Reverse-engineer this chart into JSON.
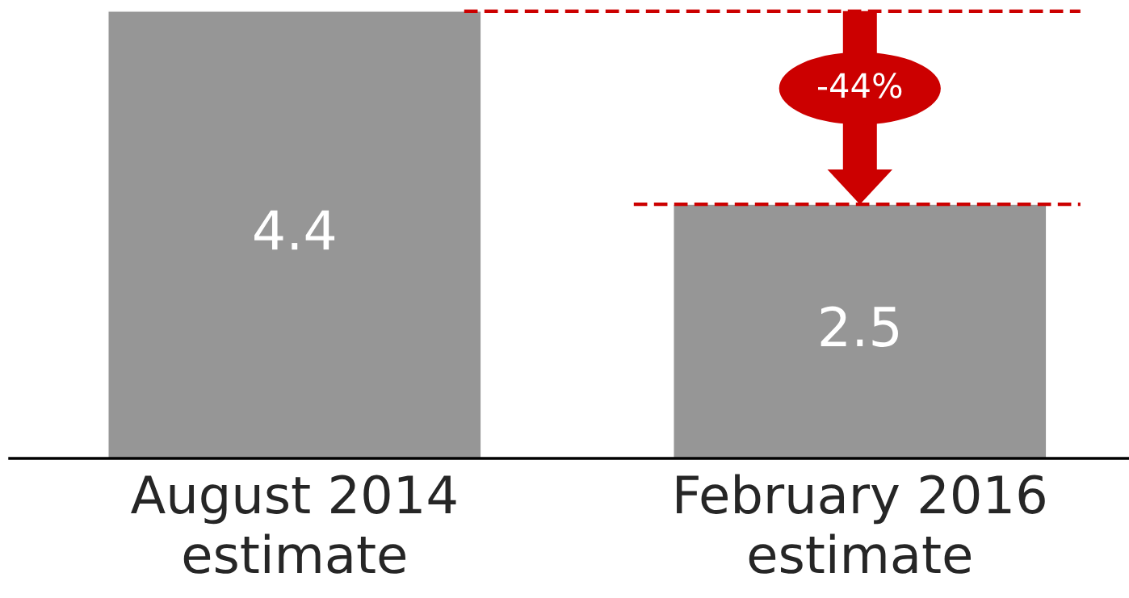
{
  "chart_data": {
    "type": "bar",
    "categories": [
      "August 2014\nestimate",
      "February 2016\nestimate"
    ],
    "values": [
      4.4,
      2.5
    ],
    "color": "#969696",
    "data_labels": true,
    "ref_lines": [
      {
        "axis": "y",
        "value": 4.4,
        "color": "#cc0000",
        "line_style": "dashed"
      },
      {
        "axis": "y",
        "value": 2.5,
        "color": "#cc0000",
        "line_style": "dashed"
      }
    ],
    "annotations": [
      "-44%"
    ],
    "grid": false
  }
}
